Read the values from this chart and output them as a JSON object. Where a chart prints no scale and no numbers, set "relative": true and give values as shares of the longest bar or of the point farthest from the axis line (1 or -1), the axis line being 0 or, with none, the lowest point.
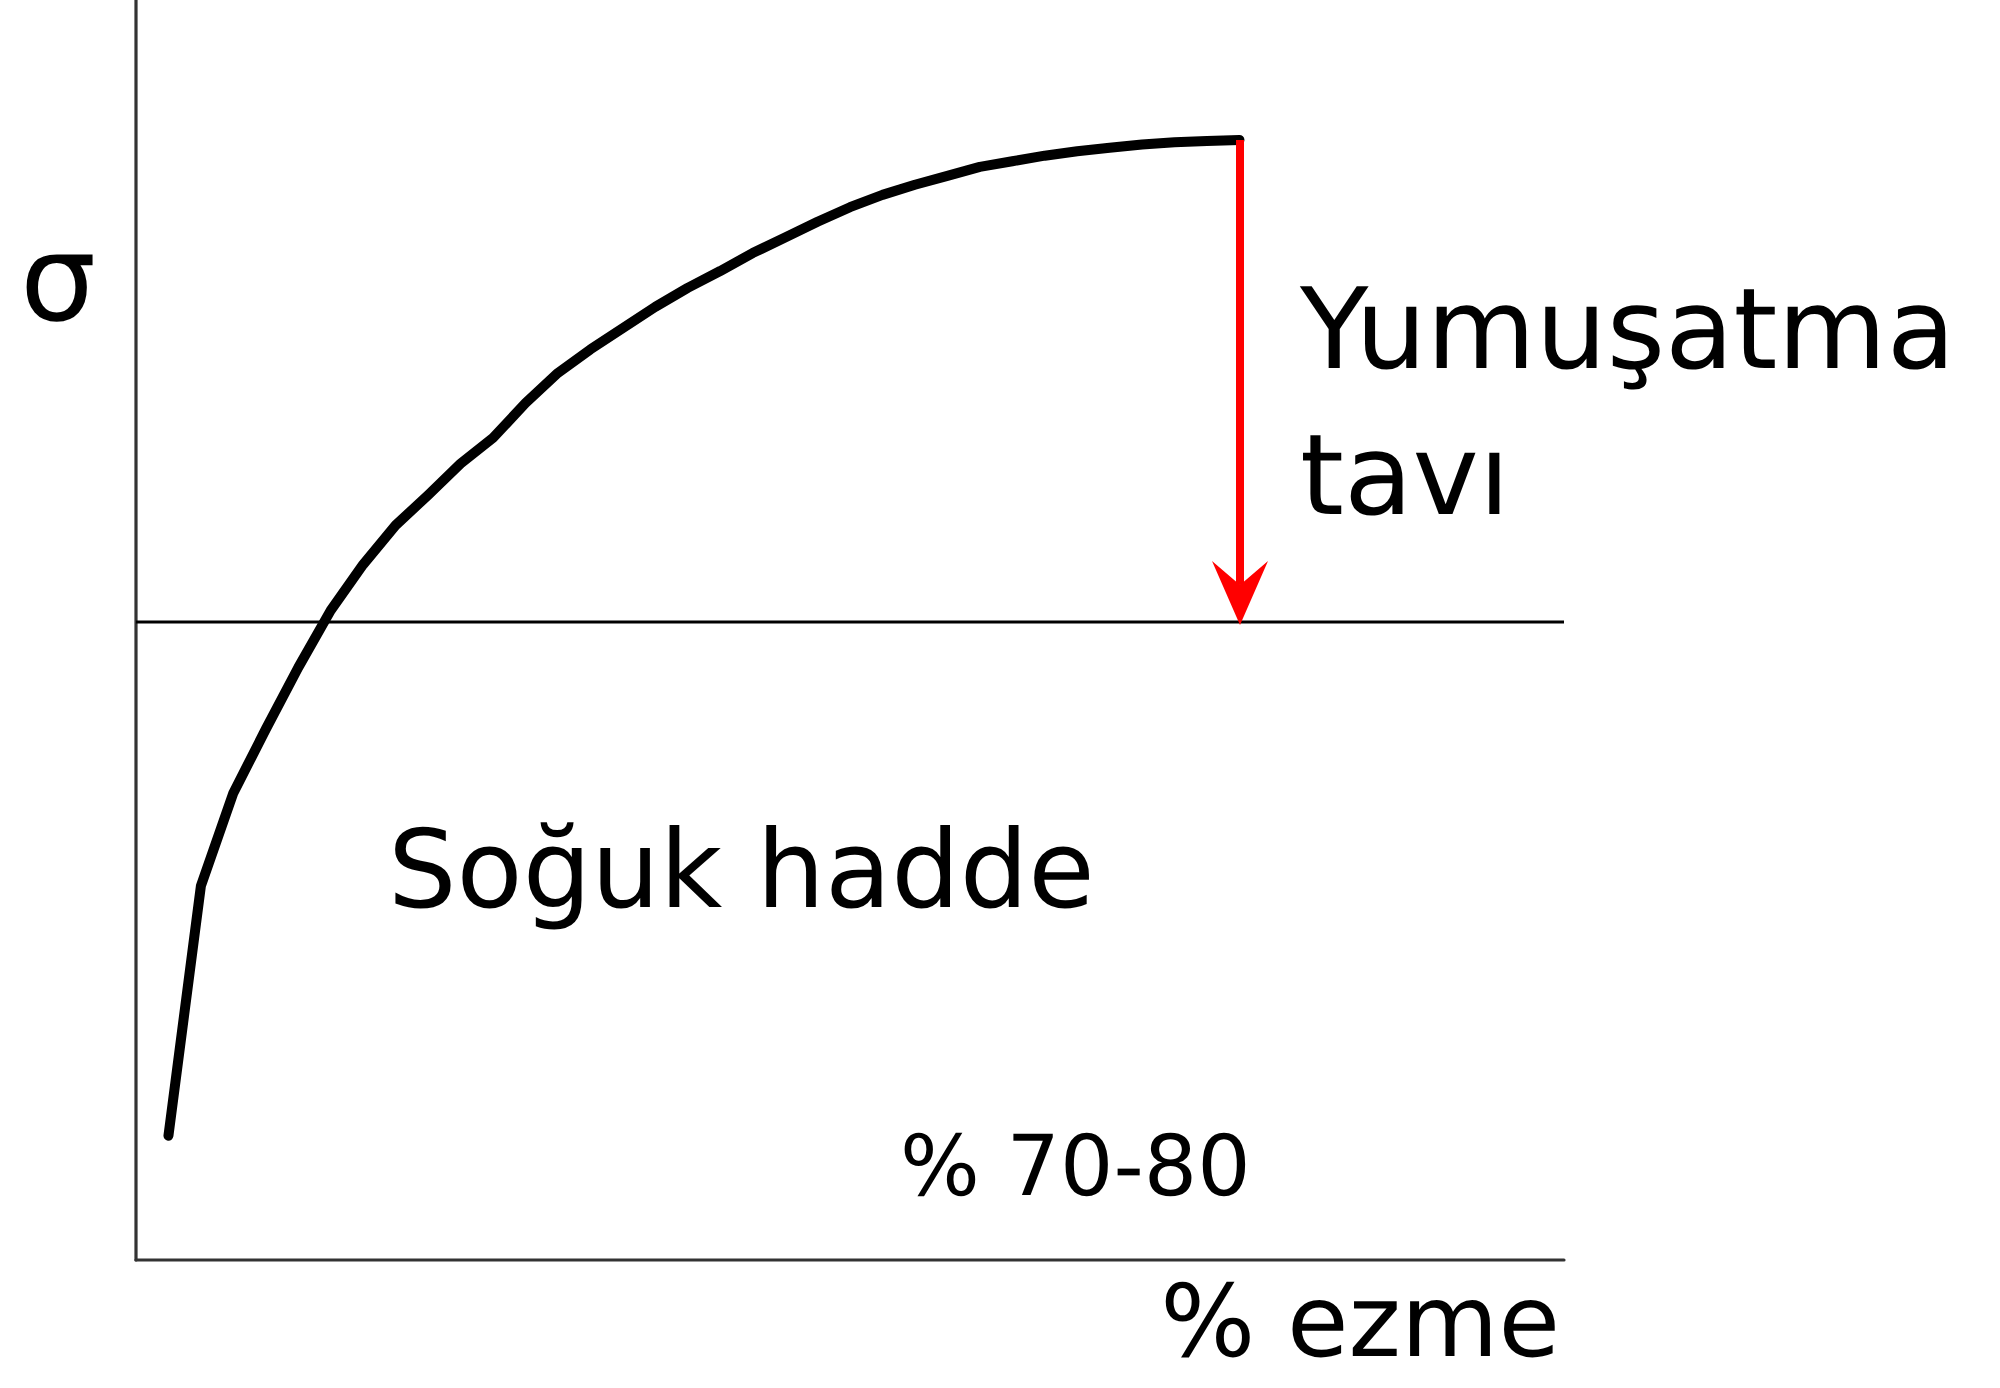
{
  "chart_data": {
    "type": "line",
    "relative": true,
    "xlabel": "% ezme",
    "ylabel": "σ",
    "categories": [
      null,
      null,
      null,
      null,
      null,
      null,
      null,
      null,
      null,
      null,
      null,
      null,
      null,
      null,
      null,
      null,
      null,
      null,
      null,
      null,
      null,
      null,
      null,
      null,
      null,
      null,
      null,
      null,
      null,
      null,
      null,
      null,
      null,
      null,
      null,
      null,
      null,
      null,
      null,
      null,
      null,
      null,
      null,
      null,
      null
    ],
    "series": [
      {
        "color": "#000000",
        "values": [
          null,
          0.111,
          0.334,
          0.417,
          0.474,
          0.529,
          0.58,
          0.621,
          0.656,
          0.683,
          0.711,
          0.734,
          0.765,
          0.792,
          0.813,
          0.832,
          0.851,
          0.868,
          0.883,
          0.899,
          0.913,
          0.927,
          0.94,
          0.951,
          0.96,
          0.968,
          0.976,
          0.981,
          0.986,
          0.99,
          0.993,
          0.996,
          0.998,
          0.999,
          1,
          null,
          null,
          null,
          null,
          null,
          null,
          null,
          null,
          null,
          null
        ]
      }
    ],
    "ref_lines": [
      {
        "axis": "y",
        "value": 0.567,
        "color": "#000000"
      }
    ],
    "annotations": [
      "Yumuşatma tavı",
      "Soğuk hadde",
      "% 70-80"
    ],
    "marker": "none",
    "line_style": "solid"
  }
}
